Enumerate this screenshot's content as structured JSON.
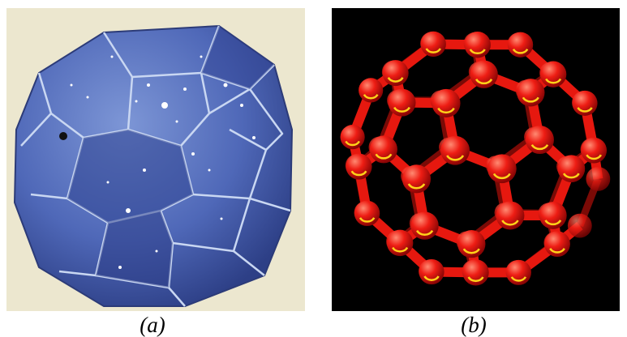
{
  "panels": [
    {
      "caption": "(a)",
      "subject": "paper-buckyball-model",
      "colors": {
        "background": "#ece7cf",
        "pentagon": "#5f7ec9",
        "hexagon": "#3e58ad",
        "edge": "#c9d7f2",
        "speckle": "#ffffff"
      }
    },
    {
      "caption": "(b)",
      "subject": "c60-molecule-ball-and-stick",
      "colors": {
        "background": "#000000",
        "atom": "#ee1d14",
        "atom_highlight": "#ff8a72",
        "bond": "#e6180f",
        "bond_tint": "#ffd21a"
      }
    }
  ]
}
